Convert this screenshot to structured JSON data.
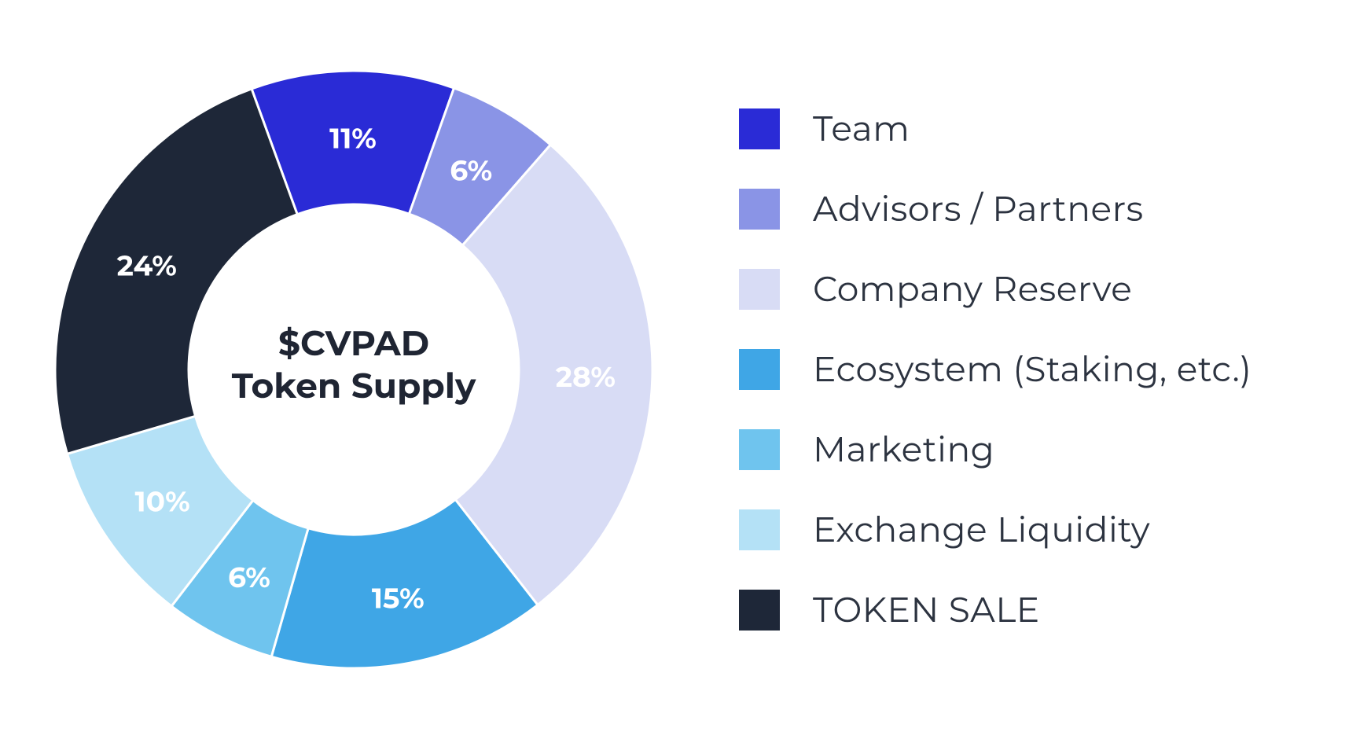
{
  "chart": {
    "type": "donut",
    "center_title_line1": "$CVPAD",
    "center_title_line2": "Token Supply",
    "center_title_fontsize": 44,
    "center_title_color": "#1f2533",
    "outer_radius": 380,
    "inner_radius": 210,
    "background_color": "#ffffff",
    "start_angle_deg": -20,
    "label_fontsize": 36,
    "label_color_light": "#ffffff",
    "label_color_dark": "#1f2533",
    "slices": [
      {
        "key": "team",
        "label": "Team",
        "value": 11,
        "pct_label": "11%",
        "color": "#2a2bd6",
        "label_use_dark": false
      },
      {
        "key": "advisors",
        "label": "Advisors / Partners",
        "value": 6,
        "pct_label": "6%",
        "color": "#8a94e6",
        "label_use_dark": false
      },
      {
        "key": "reserve",
        "label": "Company Reserve",
        "value": 28,
        "pct_label": "28%",
        "color": "#d8dcf5",
        "label_use_dark": false
      },
      {
        "key": "ecosystem",
        "label": "Ecosystem (Staking, etc.)",
        "value": 15,
        "pct_label": "15%",
        "color": "#3fa6e6",
        "label_use_dark": false
      },
      {
        "key": "marketing",
        "label": "Marketing",
        "value": 6,
        "pct_label": "6%",
        "color": "#6fc4ee",
        "label_use_dark": false
      },
      {
        "key": "liquidity",
        "label": "Exchange Liquidity",
        "value": 10,
        "pct_label": "10%",
        "color": "#b4e1f6",
        "label_use_dark": false
      },
      {
        "key": "tokensale",
        "label": "TOKEN SALE",
        "value": 24,
        "pct_label": "24%",
        "color": "#1e2738",
        "label_use_dark": false
      }
    ]
  },
  "legend": {
    "swatch_size": 52,
    "label_fontsize": 44,
    "label_color": "#2c3340"
  }
}
